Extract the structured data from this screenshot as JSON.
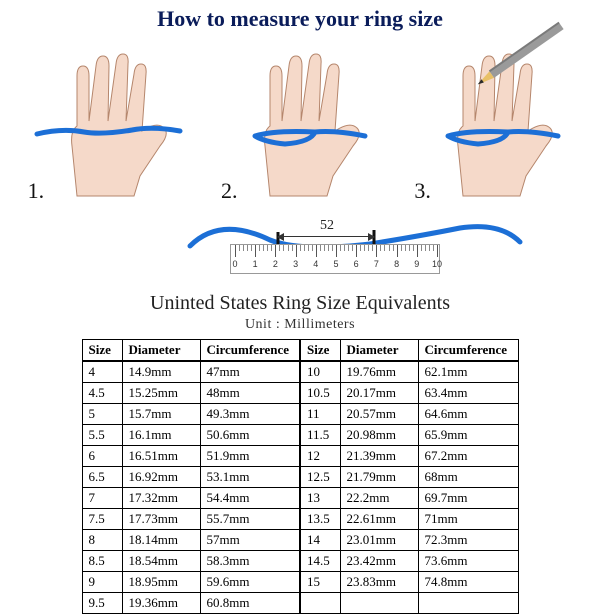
{
  "title": "How to measure your ring size",
  "steps": {
    "s1": "1.",
    "s2": "2.",
    "s3": "3."
  },
  "ruler": {
    "measure_value": "52",
    "labels": [
      "0",
      "1",
      "2",
      "3",
      "4",
      "5",
      "6",
      "7",
      "8",
      "9",
      "10"
    ]
  },
  "table": {
    "title": "Uninted States Ring Size Equivalents",
    "unit_label": "Unit  :  Millimeters",
    "headers": {
      "size": "Size",
      "diameter": "Diameter",
      "circumference": "Circumference"
    },
    "rows": [
      {
        "s1": "4",
        "d1": "14.9mm",
        "c1": "47mm",
        "s2": "10",
        "d2": "19.76mm",
        "c2": "62.1mm"
      },
      {
        "s1": "4.5",
        "d1": "15.25mm",
        "c1": "48mm",
        "s2": "10.5",
        "d2": "20.17mm",
        "c2": "63.4mm"
      },
      {
        "s1": "5",
        "d1": "15.7mm",
        "c1": "49.3mm",
        "s2": "11",
        "d2": "20.57mm",
        "c2": "64.6mm"
      },
      {
        "s1": "5.5",
        "d1": "16.1mm",
        "c1": "50.6mm",
        "s2": "11.5",
        "d2": "20.98mm",
        "c2": "65.9mm"
      },
      {
        "s1": "6",
        "d1": "16.51mm",
        "c1": "51.9mm",
        "s2": "12",
        "d2": "21.39mm",
        "c2": "67.2mm"
      },
      {
        "s1": "6.5",
        "d1": "16.92mm",
        "c1": "53.1mm",
        "s2": "12.5",
        "d2": "21.79mm",
        "c2": "68mm"
      },
      {
        "s1": "7",
        "d1": "17.32mm",
        "c1": "54.4mm",
        "s2": "13",
        "d2": "22.2mm",
        "c2": "69.7mm"
      },
      {
        "s1": "7.5",
        "d1": "17.73mm",
        "c1": "55.7mm",
        "s2": "13.5",
        "d2": "22.61mm",
        "c2": "71mm"
      },
      {
        "s1": "8",
        "d1": "18.14mm",
        "c1": "57mm",
        "s2": "14",
        "d2": "23.01mm",
        "c2": "72.3mm"
      },
      {
        "s1": "8.5",
        "d1": "18.54mm",
        "c1": "58.3mm",
        "s2": "14.5",
        "d2": "23.42mm",
        "c2": "73.6mm"
      },
      {
        "s1": "9",
        "d1": "18.95mm",
        "c1": "59.6mm",
        "s2": "15",
        "d2": "23.83mm",
        "c2": "74.8mm"
      },
      {
        "s1": "9.5",
        "d1": "19.36mm",
        "c1": "60.8mm",
        "s2": "",
        "d2": "",
        "c2": ""
      }
    ]
  },
  "colors": {
    "hand_fill": "#f5d9c9",
    "hand_stroke": "#b5866c",
    "string": "#1c6fd6",
    "title": "#0a1c5a",
    "pencil_body": "#9a9a9a",
    "pencil_tip": "#e8c067"
  }
}
